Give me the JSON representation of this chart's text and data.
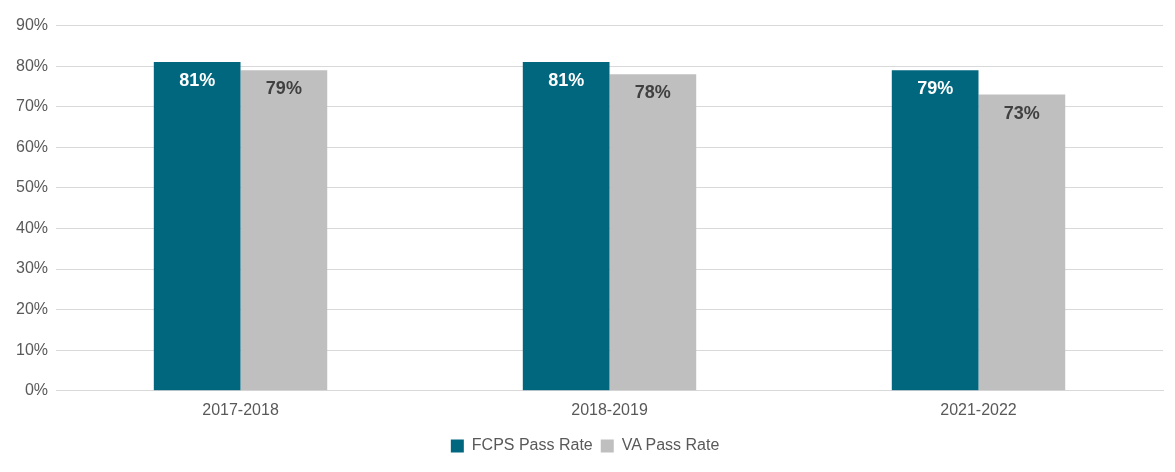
{
  "chart_data": {
    "type": "bar",
    "categories": [
      "2017-2018",
      "2018-2019",
      "2021-2022"
    ],
    "series": [
      {
        "name": "FCPS Pass Rate",
        "color": "#00677f",
        "values": [
          81,
          81,
          79
        ]
      },
      {
        "name": "VA Pass Rate",
        "color": "#bfbfbf",
        "values": [
          79,
          78,
          73
        ]
      }
    ],
    "ylim": [
      0,
      90
    ],
    "yticks": [
      {
        "value": 0,
        "label": "0%"
      },
      {
        "value": 10,
        "label": "10%"
      },
      {
        "value": 20,
        "label": "20%"
      },
      {
        "value": 30,
        "label": "30%"
      },
      {
        "value": 40,
        "label": "40%"
      },
      {
        "value": 50,
        "label": "50%"
      },
      {
        "value": 60,
        "label": "60%"
      },
      {
        "value": 70,
        "label": "70%"
      },
      {
        "value": 80,
        "label": "80%"
      },
      {
        "value": 90,
        "label": "90%"
      }
    ],
    "value_labels": [
      [
        "81%",
        "81%",
        "79%"
      ],
      [
        "79%",
        "78%",
        "73%"
      ]
    ],
    "grid": "y",
    "legend": "bottom"
  }
}
